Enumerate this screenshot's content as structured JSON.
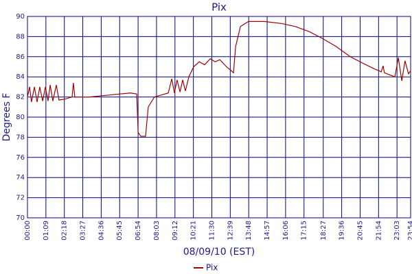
{
  "chart_data": {
    "type": "line",
    "title": "Pix",
    "x_label": "08/09/10 (EST)",
    "y_label": "Degrees F",
    "x": [
      0,
      8,
      15,
      26,
      36,
      46,
      57,
      67,
      77,
      85,
      95,
      108,
      118,
      141,
      167,
      172,
      177,
      231,
      308,
      385,
      409,
      414,
      424,
      442,
      452,
      475,
      527,
      540,
      550,
      560,
      571,
      581,
      591,
      604,
      622,
      643,
      663,
      684,
      702,
      720,
      745,
      763,
      771,
      779,
      797,
      827,
      887,
      951,
      1002,
      1054,
      1105,
      1156,
      1208,
      1259,
      1298,
      1324,
      1331,
      1336,
      1375,
      1388,
      1401,
      1413,
      1426,
      1434
    ],
    "series": [
      {
        "name": "Pix",
        "color": "#a00000",
        "values": [
          82,
          83,
          81.5,
          83,
          81.5,
          83,
          81.6,
          83,
          81.6,
          83.2,
          81.6,
          83.2,
          81.7,
          81.8,
          82,
          83.4,
          82,
          82,
          82.2,
          82.4,
          82.3,
          78.5,
          78.1,
          78.1,
          81,
          82,
          82.4,
          83.8,
          82.4,
          83.7,
          82.5,
          83.7,
          82.6,
          84,
          85,
          85.5,
          85.2,
          85.8,
          85.5,
          85.7,
          85,
          84.6,
          84.4,
          87,
          89,
          89.5,
          89.5,
          89.3,
          89,
          88.5,
          87.8,
          87,
          86,
          85.3,
          84.8,
          84.5,
          85.1,
          84.4,
          84,
          85.9,
          83.6,
          85.6,
          84.3,
          84.6
        ]
      }
    ],
    "xlim": [
      0,
      1434
    ],
    "xticks": [
      {
        "value": 0,
        "label": "00:00"
      },
      {
        "value": 69,
        "label": "01:09"
      },
      {
        "value": 138,
        "label": "02:18"
      },
      {
        "value": 207,
        "label": "03:27"
      },
      {
        "value": 276,
        "label": "04:36"
      },
      {
        "value": 345,
        "label": "05:45"
      },
      {
        "value": 414,
        "label": "06:54"
      },
      {
        "value": 483,
        "label": "08:03"
      },
      {
        "value": 552,
        "label": "09:12"
      },
      {
        "value": 621,
        "label": "10:21"
      },
      {
        "value": 690,
        "label": "11:30"
      },
      {
        "value": 759,
        "label": "12:39"
      },
      {
        "value": 828,
        "label": "13:48"
      },
      {
        "value": 897,
        "label": "14:57"
      },
      {
        "value": 966,
        "label": "16:06"
      },
      {
        "value": 1035,
        "label": "17:15"
      },
      {
        "value": 1107,
        "label": "18:27"
      },
      {
        "value": 1176,
        "label": "19:36"
      },
      {
        "value": 1245,
        "label": "20:45"
      },
      {
        "value": 1314,
        "label": "21:54"
      },
      {
        "value": 1383,
        "label": "23:03"
      },
      {
        "value": 1434,
        "label": "23:54"
      }
    ],
    "ylim": [
      70,
      90
    ],
    "yticks": [
      70,
      72,
      74,
      76,
      78,
      80,
      82,
      84,
      86,
      88,
      90
    ],
    "grid": true
  }
}
